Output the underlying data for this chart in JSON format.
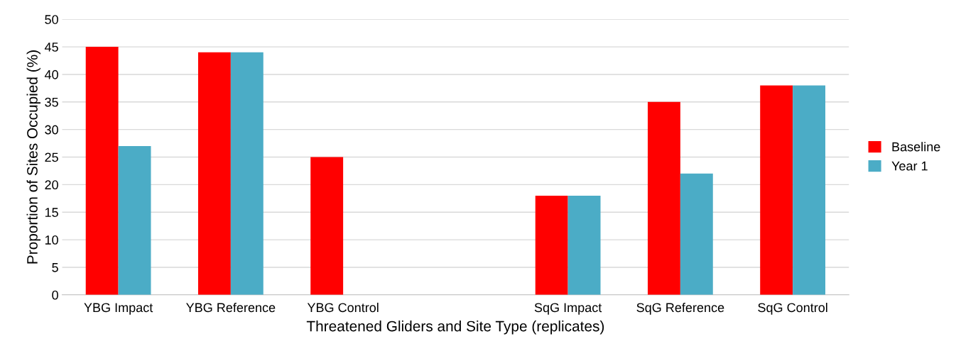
{
  "chart_data": {
    "type": "bar",
    "xlabel": "Threatened Gliders and Site Type (replicates)",
    "ylabel": "Proportion of Sites Occupied (%)",
    "categories": [
      "YBG Impact",
      "YBG Reference",
      "YBG Control",
      null,
      "SqG Impact",
      "SqG Reference",
      "SqG Control"
    ],
    "series": [
      {
        "name": "Baseline",
        "color": "#ff0000",
        "values": [
          45,
          44,
          25,
          null,
          18,
          35,
          38
        ]
      },
      {
        "name": "Year 1",
        "color": "#4bacc6",
        "values": [
          27,
          44,
          null,
          null,
          18,
          22,
          38
        ]
      }
    ],
    "ylim": [
      0,
      50
    ],
    "yticks": [
      0,
      5,
      10,
      15,
      20,
      25,
      30,
      35,
      40,
      45,
      50
    ],
    "grid": "y",
    "legend": "right"
  }
}
